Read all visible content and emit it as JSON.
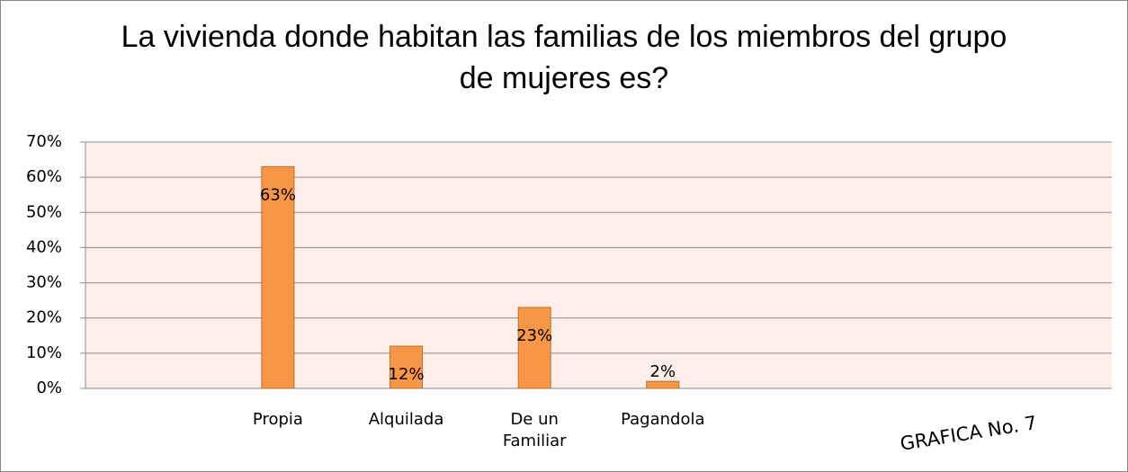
{
  "chart_data": {
    "type": "bar",
    "title": "La vivienda donde habitan las familias de los miembros del grupo de mujeres es?",
    "categories": [
      null,
      "Propia",
      "Alquilada",
      "De un Familiar",
      "Pagandola",
      null,
      null,
      null
    ],
    "values": [
      null,
      63,
      12,
      23,
      2,
      null,
      null,
      null
    ],
    "value_labels": [
      null,
      "63%",
      "12%",
      "23%",
      "2%",
      null,
      null,
      null
    ],
    "color": "#f79646",
    "ylim": [
      0,
      70
    ],
    "yticks": [
      {
        "value": 0,
        "label": "0%"
      },
      {
        "value": 10,
        "label": "10%"
      },
      {
        "value": 20,
        "label": "20%"
      },
      {
        "value": 30,
        "label": "30%"
      },
      {
        "value": 40,
        "label": "40%"
      },
      {
        "value": 50,
        "label": "50%"
      },
      {
        "value": 60,
        "label": "60%"
      },
      {
        "value": 70,
        "label": "70%"
      }
    ],
    "grid": true,
    "annotation": "GRAFICA No. 7"
  }
}
